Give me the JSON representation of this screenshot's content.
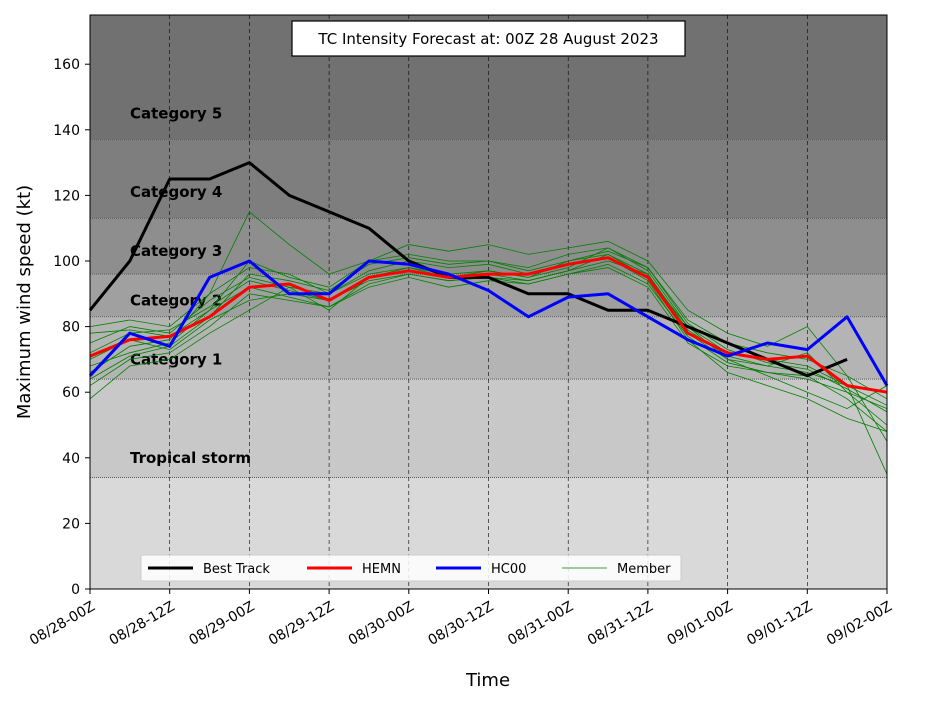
{
  "chart_data": {
    "type": "line",
    "title": "TC Intensity Forecast at: 00Z 28 August 2023",
    "xlabel": "Time",
    "ylabel": "Maximum wind speed (kt)",
    "ylim": [
      0,
      175
    ],
    "yticks": [
      0,
      20,
      40,
      60,
      80,
      100,
      120,
      140,
      160
    ],
    "xlim": [
      0,
      120
    ],
    "xticks": [
      {
        "h": 0,
        "label": "08/28-00Z"
      },
      {
        "h": 12,
        "label": "08/28-12Z"
      },
      {
        "h": 24,
        "label": "08/29-00Z"
      },
      {
        "h": 36,
        "label": "08/29-12Z"
      },
      {
        "h": 48,
        "label": "08/30-00Z"
      },
      {
        "h": 60,
        "label": "08/30-12Z"
      },
      {
        "h": 72,
        "label": "08/31-00Z"
      },
      {
        "h": 84,
        "label": "08/31-12Z"
      },
      {
        "h": 96,
        "label": "09/01-00Z"
      },
      {
        "h": 108,
        "label": "09/01-12Z"
      },
      {
        "h": 120,
        "label": "09/02-00Z"
      }
    ],
    "grid": "vertical dashed",
    "legend_position": "bottom-left",
    "categories": [
      {
        "name": "Tropical storm",
        "lo": 34,
        "hi": 64,
        "label_y": 40,
        "color": "#c8c8c8"
      },
      {
        "name": "Category 1",
        "lo": 64,
        "hi": 83,
        "label_y": 70,
        "color": "#b4b4b4"
      },
      {
        "name": "Category 2",
        "lo": 83,
        "hi": 96,
        "label_y": 88,
        "color": "#a0a0a0"
      },
      {
        "name": "Category 3",
        "lo": 96,
        "hi": 113,
        "label_y": 103,
        "color": "#8e8e8e"
      },
      {
        "name": "Category 4",
        "lo": 113,
        "hi": 137,
        "label_y": 121,
        "color": "#7e7e7e"
      },
      {
        "name": "Category 5",
        "lo": 137,
        "hi": 175,
        "label_y": 145,
        "color": "#717171"
      }
    ],
    "below_ts_color": "#d9d9d9",
    "x": [
      0,
      6,
      12,
      18,
      24,
      30,
      36,
      42,
      48,
      54,
      60,
      66,
      72,
      78,
      84,
      90,
      96,
      102,
      108,
      114,
      120
    ],
    "series": [
      {
        "name": "Best Track",
        "color": "#000000",
        "values": [
          85,
          100,
          125,
          125,
          130,
          120,
          115,
          110,
          100,
          95,
          95,
          90,
          90,
          85,
          85,
          80,
          75,
          70,
          65,
          70,
          null
        ]
      },
      {
        "name": "HEMN",
        "color": "#ff0000",
        "values": [
          71,
          76,
          77,
          83,
          92,
          93,
          88,
          95,
          97,
          95,
          96,
          96,
          99,
          101,
          95,
          78,
          72,
          70,
          71,
          62,
          60
        ]
      },
      {
        "name": "HC00",
        "color": "#0000ff",
        "values": [
          65,
          78,
          74,
          95,
          100,
          90,
          90,
          100,
          99,
          96,
          91,
          83,
          89,
          90,
          83,
          76,
          71,
          75,
          73,
          83,
          62
        ]
      }
    ],
    "members": {
      "name": "Member",
      "color": "#008000",
      "runs": [
        [
          75,
          80,
          78,
          88,
          95,
          92,
          85,
          95,
          98,
          95,
          97,
          95,
          100,
          102,
          95,
          80,
          70,
          68,
          72,
          60,
          55
        ],
        [
          68,
          72,
          75,
          85,
          100,
          95,
          92,
          100,
          102,
          100,
          100,
          98,
          102,
          104,
          98,
          82,
          75,
          72,
          70,
          65,
          58
        ],
        [
          62,
          70,
          72,
          80,
          90,
          88,
          86,
          92,
          95,
          92,
          94,
          93,
          96,
          98,
          92,
          75,
          68,
          66,
          65,
          58,
          48
        ],
        [
          80,
          82,
          80,
          90,
          115,
          105,
          96,
          100,
          105,
          103,
          105,
          102,
          104,
          106,
          100,
          85,
          78,
          74,
          80,
          65,
          45
        ],
        [
          70,
          76,
          73,
          82,
          88,
          90,
          88,
          94,
          96,
          94,
          95,
          94,
          97,
          100,
          96,
          78,
          70,
          65,
          60,
          55,
          62
        ],
        [
          58,
          68,
          70,
          78,
          85,
          92,
          90,
          97,
          100,
          98,
          99,
          96,
          99,
          101,
          94,
          76,
          66,
          62,
          58,
          52,
          48
        ],
        [
          66,
          74,
          76,
          90,
          98,
          96,
          90,
          96,
          98,
          96,
          97,
          95,
          98,
          104,
          97,
          80,
          72,
          70,
          68,
          62,
          35
        ],
        [
          78,
          79,
          77,
          85,
          92,
          89,
          86,
          93,
          96,
          94,
          95,
          93,
          96,
          99,
          93,
          77,
          69,
          66,
          64,
          60,
          50
        ],
        [
          72,
          78,
          79,
          86,
          94,
          91,
          88,
          95,
          97,
          95,
          96,
          94,
          97,
          102,
          96,
          79,
          71,
          68,
          66,
          62,
          56
        ],
        [
          64,
          71,
          74,
          83,
          96,
          94,
          91,
          99,
          101,
          99,
          100,
          97,
          100,
          103,
          98,
          81,
          73,
          69,
          67,
          61,
          54
        ]
      ]
    }
  }
}
